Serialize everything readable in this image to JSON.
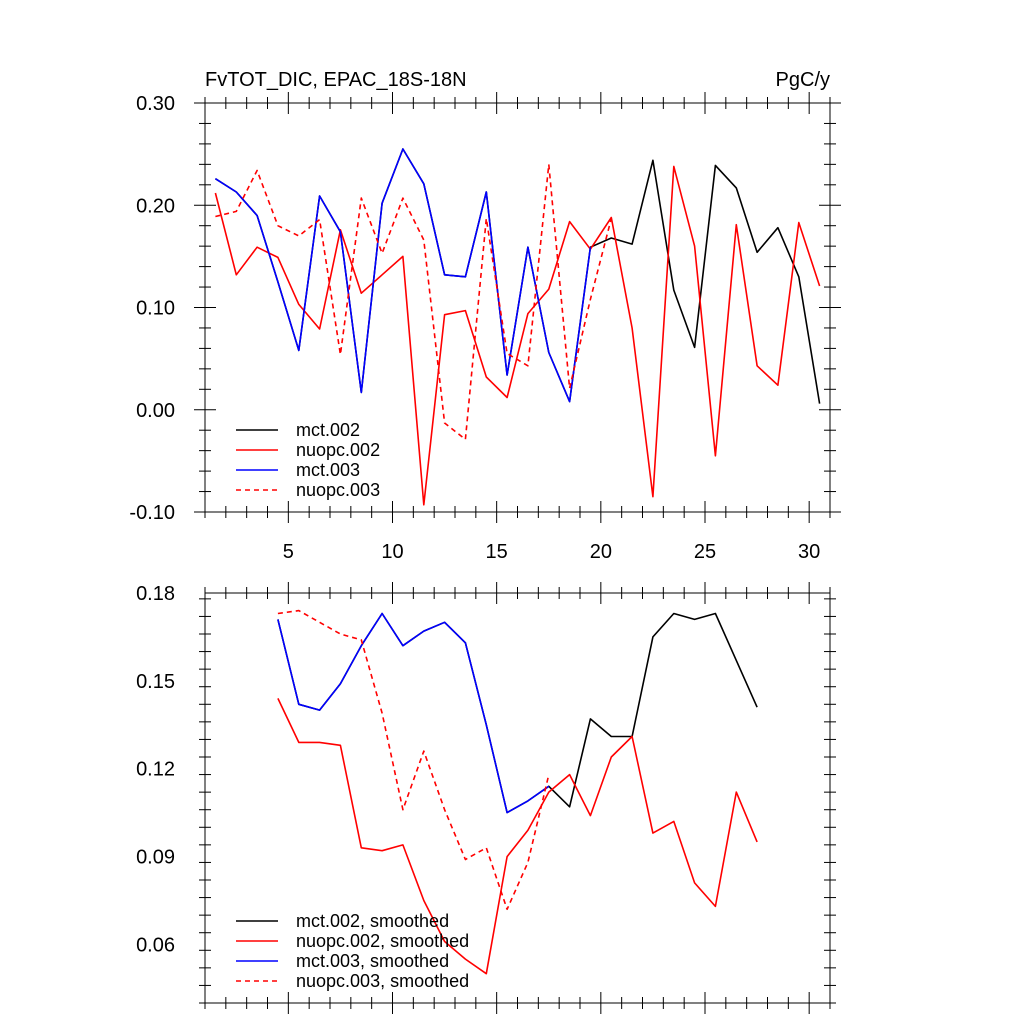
{
  "chart_data": [
    {
      "type": "line",
      "title_left": "FvTOT_DIC, EPAC_18S-18N",
      "title_right": "PgC/y",
      "xlabel": "",
      "ylabel": "",
      "xlim": [
        1,
        31
      ],
      "ylim": [
        -0.1,
        0.3
      ],
      "x_ticks": [
        5,
        10,
        15,
        20,
        25,
        30
      ],
      "x_tick_labels": [
        "5",
        "10",
        "15",
        "20",
        "25",
        "30"
      ],
      "y_ticks": [
        -0.1,
        0.0,
        0.1,
        0.2,
        0.3
      ],
      "y_tick_labels": [
        "-0.10",
        "0.00",
        "0.10",
        "0.20",
        "0.30"
      ],
      "grid": false,
      "legend": "bottom-left",
      "series": [
        {
          "name": "mct.002",
          "color": "#000000",
          "dash": "solid",
          "x": [
            1.5,
            2.5,
            3.5,
            4.5,
            5.5,
            6.5,
            7.5,
            8.5,
            9.5,
            10.5,
            11.5,
            12.5,
            13.5,
            14.5,
            15.5,
            16.5,
            17.5,
            18.5,
            19.5,
            20.5,
            21.5,
            22.5,
            23.5,
            24.5,
            25.5,
            26.5,
            27.5,
            28.5,
            29.5,
            30.5
          ],
          "values": [
            0.226,
            0.213,
            0.19,
            0.125,
            0.058,
            0.209,
            0.174,
            0.017,
            0.202,
            0.255,
            0.221,
            0.132,
            0.13,
            0.213,
            0.034,
            0.159,
            0.056,
            0.008,
            0.159,
            0.168,
            0.162,
            0.244,
            0.117,
            0.061,
            0.239,
            0.217,
            0.154,
            0.178,
            0.13,
            0.006
          ]
        },
        {
          "name": "nuopc.002",
          "color": "#ff0000",
          "dash": "solid",
          "x": [
            1.5,
            2.5,
            3.5,
            4.5,
            5.5,
            6.5,
            7.5,
            8.5,
            9.5,
            10.5,
            11.5,
            12.5,
            13.5,
            14.5,
            15.5,
            16.5,
            17.5,
            18.5,
            19.5,
            20.5,
            21.5,
            22.5,
            23.5,
            24.5,
            25.5,
            26.5,
            27.5,
            28.5,
            29.5,
            30.5
          ],
          "values": [
            0.212,
            0.132,
            0.159,
            0.149,
            0.103,
            0.079,
            0.176,
            0.114,
            0.132,
            0.15,
            -0.093,
            0.093,
            0.097,
            0.032,
            0.012,
            0.094,
            0.118,
            0.184,
            0.157,
            0.188,
            0.08,
            -0.085,
            0.238,
            0.16,
            -0.045,
            0.181,
            0.043,
            0.024,
            0.183,
            0.121
          ]
        },
        {
          "name": "mct.003",
          "color": "#0000ff",
          "dash": "solid",
          "x": [
            1.5,
            2.5,
            3.5,
            4.5,
            5.5,
            6.5,
            7.5,
            8.5,
            9.5,
            10.5,
            11.5,
            12.5,
            13.5,
            14.5,
            15.5,
            16.5,
            17.5,
            18.5,
            19.5
          ],
          "values": [
            0.226,
            0.213,
            0.19,
            0.125,
            0.058,
            0.209,
            0.174,
            0.017,
            0.202,
            0.255,
            0.221,
            0.132,
            0.13,
            0.213,
            0.034,
            0.159,
            0.056,
            0.008,
            0.159
          ]
        },
        {
          "name": "nuopc.003",
          "color": "#ff0000",
          "dash": "dashed",
          "x": [
            1.5,
            2.5,
            3.5,
            4.5,
            5.5,
            6.5,
            7.5,
            8.5,
            9.5,
            10.5,
            11.5,
            12.5,
            13.5,
            14.5,
            15.5,
            16.5,
            17.5,
            18.5,
            19.5,
            20.5
          ],
          "values": [
            0.189,
            0.194,
            0.234,
            0.18,
            0.17,
            0.186,
            0.054,
            0.207,
            0.153,
            0.207,
            0.166,
            -0.013,
            -0.029,
            0.187,
            0.055,
            0.043,
            0.24,
            0.021,
            0.108,
            0.187
          ]
        }
      ]
    },
    {
      "type": "line",
      "title_left": "",
      "title_right": "",
      "xlabel": "",
      "ylabel": "",
      "xlim": [
        1,
        31
      ],
      "ylim": [
        0.04,
        0.18
      ],
      "x_ticks": [
        5,
        10,
        15,
        20,
        25,
        30
      ],
      "y_ticks": [
        0.06,
        0.09,
        0.12,
        0.15,
        0.18
      ],
      "y_tick_labels": [
        "0.06",
        "0.09",
        "0.12",
        "0.15",
        "0.18"
      ],
      "grid": false,
      "legend": "bottom-left",
      "series": [
        {
          "name": "mct.002, smoothed",
          "color": "#000000",
          "dash": "solid",
          "x": [
            4.5,
            5.5,
            6.5,
            7.5,
            8.5,
            9.5,
            10.5,
            11.5,
            12.5,
            13.5,
            14.5,
            15.5,
            16.5,
            17.5,
            18.5,
            19.5,
            20.5,
            21.5,
            22.5,
            23.5,
            24.5,
            25.5,
            26.5,
            27.5
          ],
          "values": [
            0.171,
            0.142,
            0.14,
            0.149,
            0.162,
            0.173,
            0.162,
            0.167,
            0.17,
            0.163,
            0.135,
            0.105,
            0.109,
            0.114,
            0.107,
            0.137,
            0.131,
            0.131,
            0.165,
            0.173,
            0.171,
            0.173,
            0.157,
            0.141
          ]
        },
        {
          "name": "nuopc.002, smoothed",
          "color": "#ff0000",
          "dash": "solid",
          "x": [
            4.5,
            5.5,
            6.5,
            7.5,
            8.5,
            9.5,
            10.5,
            11.5,
            12.5,
            13.5,
            14.5,
            15.5,
            16.5,
            17.5,
            18.5,
            19.5,
            20.5,
            21.5,
            22.5,
            23.5,
            24.5,
            25.5,
            26.5,
            27.5
          ],
          "values": [
            0.144,
            0.129,
            0.129,
            0.128,
            0.093,
            0.092,
            0.094,
            0.075,
            0.061,
            0.055,
            0.05,
            0.09,
            0.099,
            0.112,
            0.118,
            0.104,
            0.124,
            0.131,
            0.098,
            0.102,
            0.081,
            0.073,
            0.112,
            0.095
          ]
        },
        {
          "name": "mct.003, smoothed",
          "color": "#0000ff",
          "dash": "solid",
          "x": [
            4.5,
            5.5,
            6.5,
            7.5,
            8.5,
            9.5,
            10.5,
            11.5,
            12.5,
            13.5,
            14.5,
            15.5,
            16.5,
            17.5
          ],
          "values": [
            0.171,
            0.142,
            0.14,
            0.149,
            0.162,
            0.173,
            0.162,
            0.167,
            0.17,
            0.163,
            0.135,
            0.105,
            0.109,
            0.114
          ]
        },
        {
          "name": "nuopc.003, smoothed",
          "color": "#ff0000",
          "dash": "dashed",
          "x": [
            4.5,
            5.5,
            6.5,
            7.5,
            8.5,
            9.5,
            10.5,
            11.5,
            12.5,
            13.5,
            14.5,
            15.5,
            16.5,
            17.5
          ],
          "values": [
            0.173,
            0.174,
            0.17,
            0.166,
            0.164,
            0.139,
            0.106,
            0.126,
            0.106,
            0.089,
            0.093,
            0.072,
            0.088,
            0.118
          ]
        }
      ]
    }
  ]
}
